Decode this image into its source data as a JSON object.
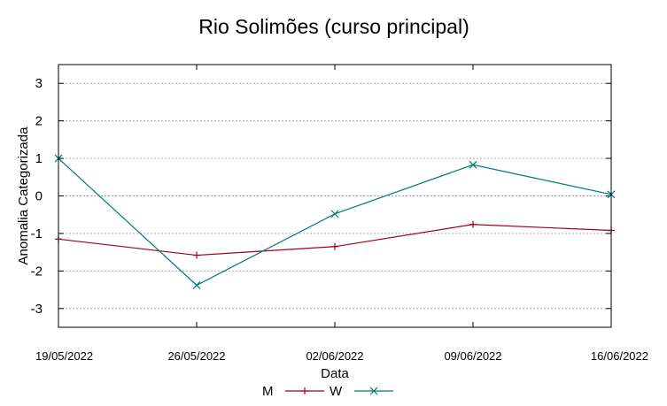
{
  "chart_data": {
    "type": "line",
    "title": "Rio Solimões (curso principal)",
    "xlabel": "Data",
    "ylabel": "Anomalia Categorizada",
    "x": [
      "19/05/2022",
      "26/05/2022",
      "02/06/2022",
      "09/06/2022",
      "16/06/2022"
    ],
    "ylim": [
      -3.5,
      3.5
    ],
    "yticks": [
      -3,
      -2,
      -1,
      0,
      1,
      2,
      3
    ],
    "grid": true,
    "legend_position": "bottom-center",
    "series": [
      {
        "name": "M",
        "color": "#a0001f",
        "marker": "plus",
        "values": [
          -1.15,
          -1.58,
          -1.35,
          -0.76,
          -0.92
        ]
      },
      {
        "name": "W",
        "color": "#00797a",
        "marker": "cross",
        "values": [
          1.0,
          -2.38,
          -0.48,
          0.83,
          0.04
        ]
      }
    ]
  }
}
